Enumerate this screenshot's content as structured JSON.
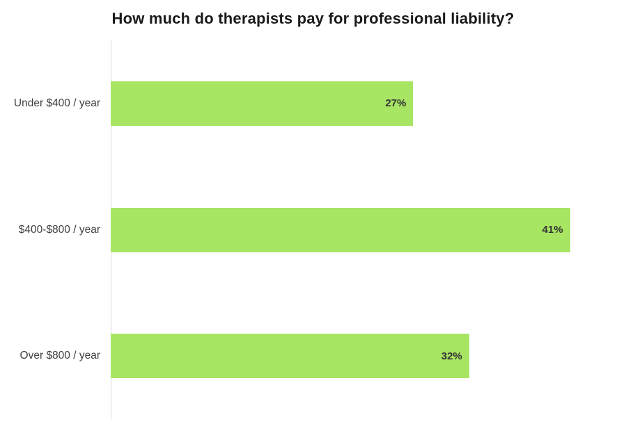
{
  "chart_data": {
    "type": "bar",
    "orientation": "horizontal",
    "title": "How much do therapists pay for professional liability?",
    "categories": [
      "Under $400 / year",
      "$400-$800 / year",
      "Over $800 / year"
    ],
    "values": [
      27,
      41,
      32
    ],
    "value_labels": [
      "27%",
      "41%",
      "32%"
    ],
    "xlabel": "",
    "ylabel": "",
    "xlim": [
      0,
      46
    ],
    "grid": false,
    "legend": false,
    "bar_color": "#a8e563",
    "title_color": "#1a1a1a",
    "category_label_color": "#404040",
    "value_label_color": "#333333",
    "axis_line_color": "#d9d9d9",
    "background": "#ffffff"
  }
}
